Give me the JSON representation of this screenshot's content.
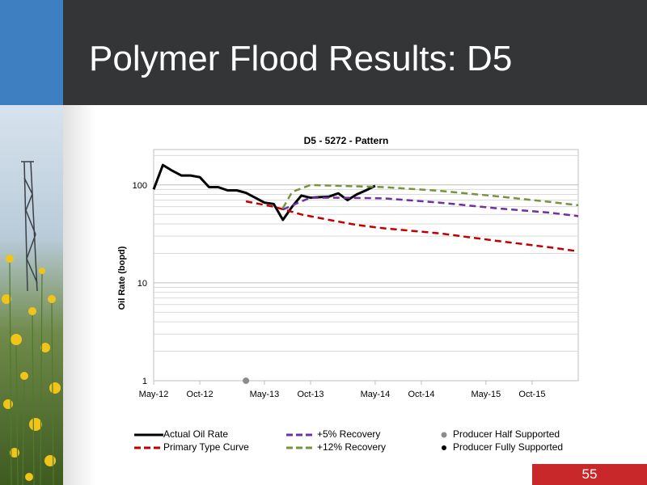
{
  "slide": {
    "title": "Polymer Flood Results: D5",
    "page_number": "55"
  },
  "colors": {
    "title_bar": "#333537",
    "accent_blue": "#3d7fc1",
    "page_badge": "#c8282a",
    "actual": "#000000",
    "primary": "#c00000",
    "recovery5": "#7030a0",
    "recovery12": "#77933c"
  },
  "chart_data": {
    "type": "line",
    "title": "D5 - 5272 - Pattern",
    "xlabel": "",
    "ylabel": "Oil Rate (bopd)",
    "yscale": "log",
    "ylim": [
      1,
      230
    ],
    "y_ticks": [
      "1",
      "10",
      "100"
    ],
    "x_ticks": [
      "May-12",
      "Oct-12",
      "May-13",
      "Oct-13",
      "May-14",
      "Oct-14",
      "May-15",
      "Oct-15"
    ],
    "xlim": [
      "2012-05",
      "2016-03"
    ],
    "grid": true,
    "legend_position": "bottom",
    "series": [
      {
        "name": "Actual Oil Rate",
        "style": "solid",
        "color": "#000000",
        "x": [
          "2012-05",
          "2012-06",
          "2012-07",
          "2012-08",
          "2012-09",
          "2012-10",
          "2012-11",
          "2012-12",
          "2013-01",
          "2013-02",
          "2013-03",
          "2013-04",
          "2013-05",
          "2013-06",
          "2013-07",
          "2013-08",
          "2013-09",
          "2013-10",
          "2013-11",
          "2013-12",
          "2014-01",
          "2014-02",
          "2014-03",
          "2014-04",
          "2014-05"
        ],
        "values": [
          90,
          160,
          140,
          125,
          125,
          120,
          95,
          95,
          88,
          88,
          83,
          74,
          66,
          64,
          44,
          60,
          78,
          74,
          75,
          76,
          82,
          70,
          80,
          88,
          98
        ]
      },
      {
        "name": "Primary Type Curve",
        "style": "dashed",
        "color": "#c00000",
        "x": [
          "2013-03",
          "2013-06",
          "2013-09",
          "2013-12",
          "2014-03",
          "2014-06",
          "2014-12",
          "2015-06",
          "2015-12",
          "2016-03"
        ],
        "values": [
          68,
          60,
          50,
          44,
          39,
          36,
          32,
          27,
          23,
          21
        ]
      },
      {
        "name": "+5% Recovery",
        "style": "dashed",
        "color": "#7030a0",
        "x": [
          "2013-07",
          "2013-09",
          "2013-10",
          "2014-01",
          "2014-06",
          "2014-12",
          "2015-06",
          "2015-12",
          "2016-03"
        ],
        "values": [
          56,
          68,
          74,
          74,
          73,
          66,
          58,
          52,
          48
        ]
      },
      {
        "name": "+12% Recovery",
        "style": "dashed",
        "color": "#77933c",
        "x": [
          "2013-07",
          "2013-08",
          "2013-10",
          "2014-01",
          "2014-06",
          "2014-12",
          "2015-06",
          "2015-12",
          "2016-03"
        ],
        "values": [
          58,
          85,
          100,
          98,
          95,
          87,
          77,
          67,
          62
        ]
      }
    ],
    "markers": [
      {
        "name": "Producer Half Supported",
        "color": "#8c8c8c",
        "x": [
          "2013-03"
        ],
        "values": [
          1
        ]
      },
      {
        "name": "Producer Fully Supported",
        "color": "#000000",
        "x": [],
        "values": []
      }
    ]
  }
}
